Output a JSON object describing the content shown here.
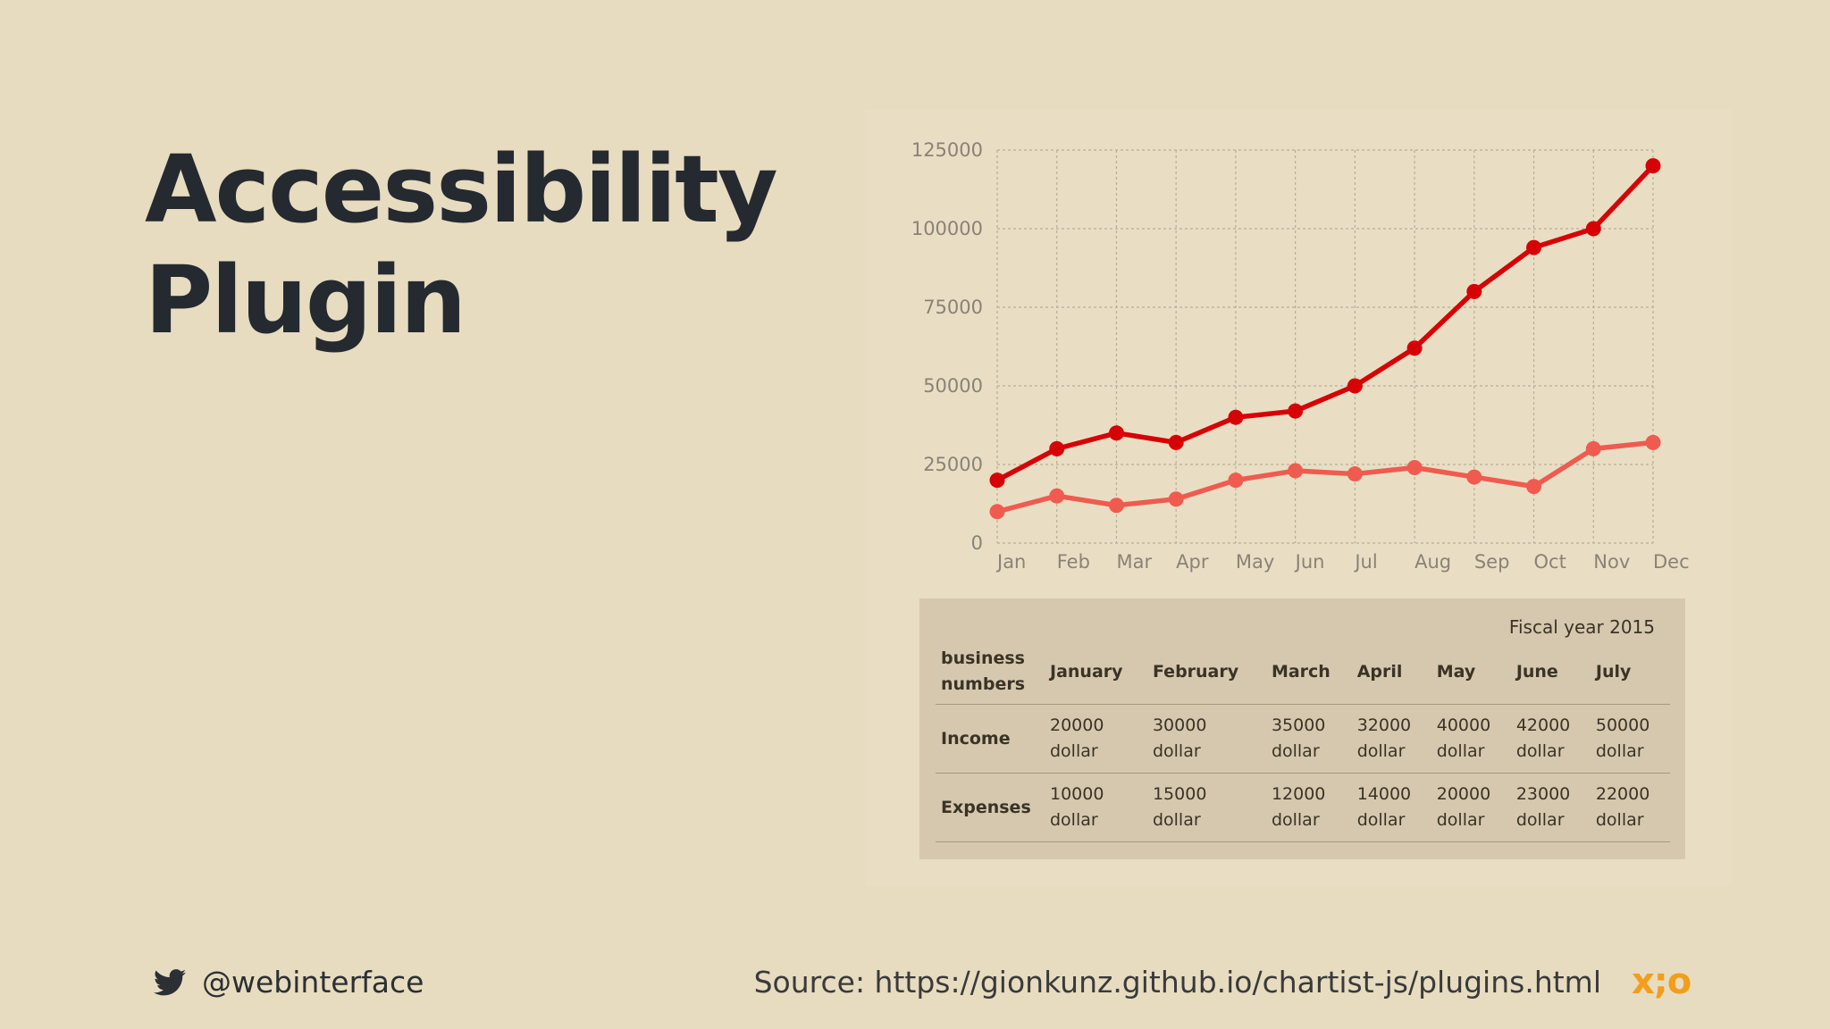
{
  "slide": {
    "title_line1": "Accessibility",
    "title_line2": "Plugin",
    "handle": "@webinterface",
    "source": "Source: https://gionkunz.github.io/chartist-js/plugins.html",
    "logo_text": "x;o"
  },
  "chart_data": {
    "type": "line",
    "categories": [
      "Jan",
      "Feb",
      "Mar",
      "Apr",
      "May",
      "Jun",
      "Jul",
      "Aug",
      "Sep",
      "Oct",
      "Nov",
      "Dec"
    ],
    "series": [
      {
        "values": [
          20000,
          30000,
          35000,
          32000,
          40000,
          42000,
          50000,
          62000,
          80000,
          94000,
          100000,
          120000
        ],
        "color": "#d70206"
      },
      {
        "values": [
          10000,
          15000,
          12000,
          14000,
          20000,
          23000,
          22000,
          24000,
          21000,
          18000,
          30000,
          32000
        ],
        "color": "#f05b4f"
      }
    ],
    "ylim": [
      0,
      125000
    ],
    "yticks": [
      "125000",
      "100000",
      "75000",
      "50000",
      "25000",
      "0"
    ],
    "grid": true
  },
  "table": {
    "caption": "Fiscal year 2015",
    "header": [
      "business numbers",
      "January",
      "February",
      "March",
      "April",
      "May",
      "June",
      "July"
    ],
    "rows": [
      {
        "label": "Income",
        "cells": [
          "20000 dollar",
          "30000 dollar",
          "35000 dollar",
          "32000 dollar",
          "40000 dollar",
          "42000 dollar",
          "50000 dollar"
        ]
      },
      {
        "label": "Expenses",
        "cells": [
          "10000 dollar",
          "15000 dollar",
          "12000 dollar",
          "14000 dollar",
          "20000 dollar",
          "23000 dollar",
          "22000 dollar"
        ]
      }
    ]
  }
}
